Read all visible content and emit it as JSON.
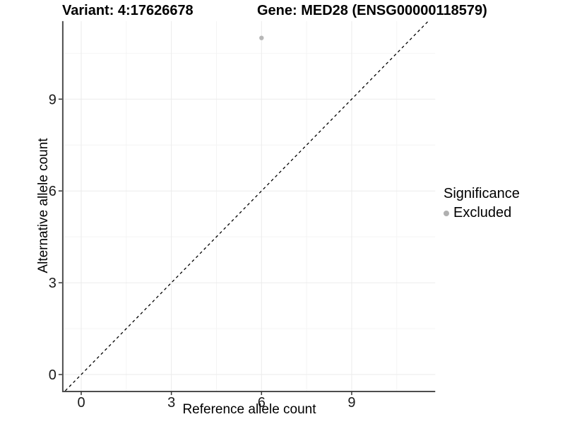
{
  "figure": {
    "background": "#ffffff"
  },
  "chart_data": {
    "type": "scatter",
    "title_left": "Variant: 4:17626678",
    "title_right": "Gene: MED28 (ENSG00000118579)",
    "xlabel": "Reference allele count",
    "ylabel": "Alternative allele count",
    "x_ticks": [
      0,
      3,
      6,
      9
    ],
    "x_tick_labels": [
      "0",
      "3",
      "6",
      "9"
    ],
    "y_ticks": [
      0,
      3,
      6,
      9
    ],
    "y_tick_labels": [
      "0",
      "3",
      "6",
      "9"
    ],
    "x_minor_ticks": [
      1.5,
      4.5,
      7.5,
      10.5
    ],
    "y_minor_ticks": [
      1.5,
      4.5,
      7.5,
      10.5
    ],
    "xlim": [
      -0.59,
      11.78
    ],
    "ylim": [
      -0.53,
      11.55
    ],
    "grid": "major and minor gridlines, light gray on white panel",
    "legend_position": "right",
    "reference_line": {
      "kind": "identity y = x",
      "slope": 1,
      "intercept": 0,
      "style": "dashed",
      "color": "#000000"
    },
    "series": [
      {
        "name": "Excluded",
        "color": "#b7b7b7",
        "points": [
          {
            "x": 6,
            "y": 11
          }
        ]
      }
    ],
    "legend": {
      "title": "Significance",
      "entries": [
        {
          "label": "Excluded",
          "color": "#b0b0b0"
        }
      ]
    },
    "colors": {
      "axis_line": "#4d4d4d",
      "tick_mark": "#333333",
      "tick_label": "#1a1a1a",
      "grid_major": "#ebebeb",
      "grid_minor": "#f4f4f4",
      "title_text": "#000000",
      "point_fill": "#b7b7b7"
    }
  }
}
